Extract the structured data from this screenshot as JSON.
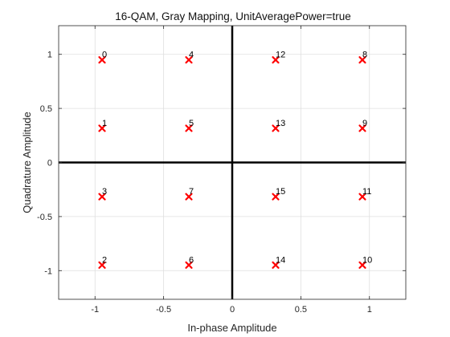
{
  "chart_data": {
    "type": "scatter",
    "title": "16-QAM, Gray Mapping, UnitAveragePower=true",
    "xlabel": "In-phase Amplitude",
    "ylabel": "Quadrature Amplitude",
    "xlim": [
      -1.265,
      1.265
    ],
    "ylim": [
      -1.265,
      1.265
    ],
    "xticks": [
      -1,
      -0.5,
      0,
      0.5,
      1
    ],
    "xtick_labels": [
      "-1",
      "-0.5",
      "0",
      "0.5",
      "1"
    ],
    "yticks": [
      -1,
      -0.5,
      0,
      0.5,
      1
    ],
    "ytick_labels": [
      "-1",
      "-0.5",
      "0",
      "0.5",
      "1"
    ],
    "grid": true,
    "marker": "x",
    "marker_color": "#ff0000",
    "zero_axis_color": "#000000",
    "points": [
      {
        "label": "0",
        "x": -0.9487,
        "y": 0.9487
      },
      {
        "label": "1",
        "x": -0.9487,
        "y": 0.3162
      },
      {
        "label": "2",
        "x": -0.9487,
        "y": -0.9487
      },
      {
        "label": "3",
        "x": -0.9487,
        "y": -0.3162
      },
      {
        "label": "4",
        "x": -0.3162,
        "y": 0.9487
      },
      {
        "label": "5",
        "x": -0.3162,
        "y": 0.3162
      },
      {
        "label": "6",
        "x": -0.3162,
        "y": -0.9487
      },
      {
        "label": "7",
        "x": -0.3162,
        "y": -0.3162
      },
      {
        "label": "8",
        "x": 0.9487,
        "y": 0.9487
      },
      {
        "label": "9",
        "x": 0.9487,
        "y": 0.3162
      },
      {
        "label": "10",
        "x": 0.9487,
        "y": -0.9487
      },
      {
        "label": "11",
        "x": 0.9487,
        "y": -0.3162
      },
      {
        "label": "12",
        "x": 0.3162,
        "y": 0.9487
      },
      {
        "label": "13",
        "x": 0.3162,
        "y": 0.3162
      },
      {
        "label": "14",
        "x": 0.3162,
        "y": -0.9487
      },
      {
        "label": "15",
        "x": 0.3162,
        "y": -0.3162
      }
    ]
  }
}
